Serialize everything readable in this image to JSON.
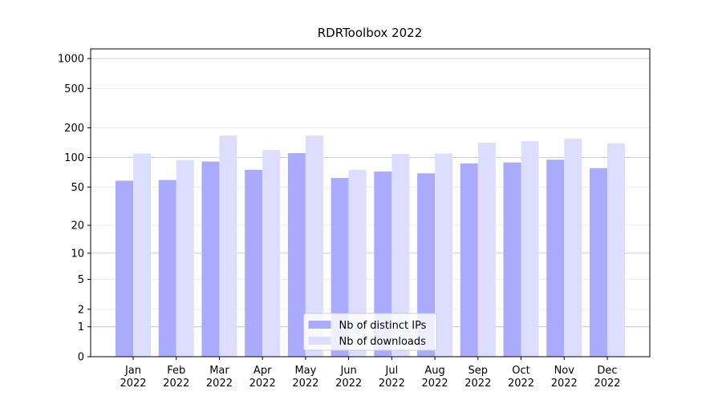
{
  "chart_data": {
    "type": "bar",
    "title": "RDRToolbox 2022",
    "categories": [
      "Jan 2022",
      "Feb 2022",
      "Mar 2022",
      "Apr 2022",
      "May 2022",
      "Jun 2022",
      "Jul 2022",
      "Aug 2022",
      "Sep 2022",
      "Oct 2022",
      "Nov 2022",
      "Dec 2022"
    ],
    "series": [
      {
        "name": "Nb of distinct IPs",
        "color": "#aaaaff",
        "values": [
          58,
          59,
          91,
          75,
          111,
          62,
          72,
          69,
          87,
          89,
          95,
          78
        ]
      },
      {
        "name": "Nb of downloads",
        "color": "#ddddff",
        "values": [
          110,
          94,
          167,
          119,
          167,
          75,
          109,
          110,
          141,
          147,
          155,
          139
        ]
      }
    ],
    "yscale": "log1p",
    "ylim": [
      0,
      1250
    ],
    "yticks": [
      0,
      1,
      2,
      5,
      10,
      20,
      50,
      100,
      200,
      500,
      1000
    ],
    "grid": true,
    "legend": "lower center"
  }
}
